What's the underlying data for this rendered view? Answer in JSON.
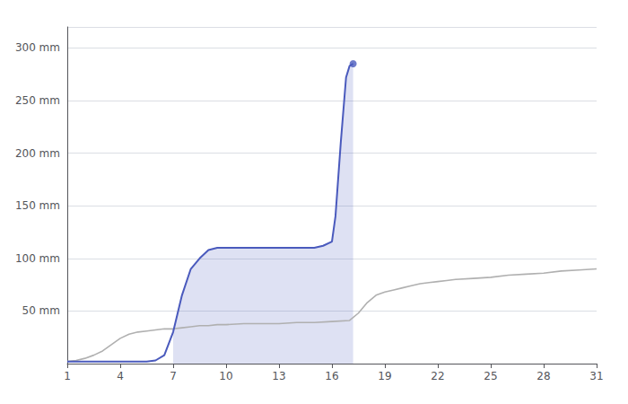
{
  "chart_data": {
    "type": "line",
    "xlim": [
      1,
      31
    ],
    "xticks": [
      1,
      4,
      7,
      10,
      13,
      16,
      19,
      22,
      25,
      28,
      31
    ],
    "ylim": [
      0,
      320
    ],
    "yticks": [
      {
        "value": 50,
        "label": "50 mm"
      },
      {
        "value": 100,
        "label": "100 mm"
      },
      {
        "value": 150,
        "label": "150 mm"
      },
      {
        "value": 200,
        "label": "200 mm"
      },
      {
        "value": 250,
        "label": "250 mm"
      },
      {
        "value": 300,
        "label": "300 mm"
      }
    ],
    "grid": true,
    "series": [
      {
        "type": "line",
        "color": "#b0b0b0",
        "x": [
          1,
          1.5,
          2,
          2.5,
          3,
          3.5,
          4,
          4.5,
          5,
          5.5,
          6,
          6.5,
          7,
          7.5,
          8,
          8.5,
          9,
          9.5,
          10,
          11,
          12,
          13,
          14,
          15,
          16,
          17,
          17.5,
          18,
          18.5,
          19,
          19.5,
          20,
          20.5,
          21,
          21.5,
          22,
          22.5,
          23,
          24,
          25,
          26,
          27,
          28,
          29,
          30,
          31
        ],
        "values": [
          2,
          3,
          5,
          8,
          12,
          18,
          24,
          28,
          30,
          31,
          32,
          33,
          33,
          34,
          35,
          36,
          36,
          37,
          37,
          38,
          38,
          38,
          39,
          39,
          40,
          41,
          48,
          58,
          65,
          68,
          70,
          72,
          74,
          76,
          77,
          78,
          79,
          80,
          81,
          82,
          84,
          85,
          86,
          88,
          89,
          90
        ]
      },
      {
        "type": "line",
        "color": "#4a5abd",
        "fill_range": [
          7.0,
          17.5
        ],
        "x": [
          1,
          2,
          3,
          4,
          5,
          5.5,
          6.0,
          6.5,
          7.0,
          7.5,
          8.0,
          8.5,
          9.0,
          9.5,
          10,
          11,
          12,
          13,
          14,
          15,
          15.5,
          16.0,
          16.2,
          16.5,
          16.8,
          17.0,
          17.2
        ],
        "values": [
          2,
          2,
          2,
          2,
          2,
          2,
          3,
          8,
          30,
          65,
          90,
          100,
          108,
          110,
          110,
          110,
          110,
          110,
          110,
          110,
          112,
          116,
          140,
          210,
          272,
          283,
          285
        ]
      },
      {
        "type": "scatter",
        "color": "#4a5abd",
        "marker": "circle",
        "x": [
          17.2
        ],
        "values": [
          285
        ]
      }
    ]
  }
}
